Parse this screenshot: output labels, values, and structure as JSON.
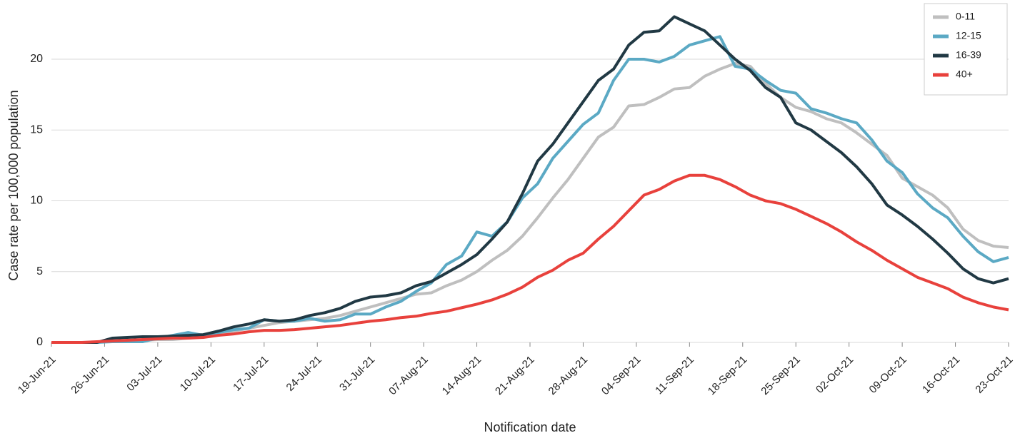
{
  "chart_data": {
    "type": "line",
    "x_label": "Notification date",
    "y_label": "Case rate per 100,000 population",
    "x": [
      "2021-06-19",
      "2021-06-21",
      "2021-06-23",
      "2021-06-25",
      "2021-06-27",
      "2021-06-29",
      "2021-07-01",
      "2021-07-03",
      "2021-07-05",
      "2021-07-07",
      "2021-07-09",
      "2021-07-11",
      "2021-07-13",
      "2021-07-15",
      "2021-07-17",
      "2021-07-19",
      "2021-07-21",
      "2021-07-23",
      "2021-07-25",
      "2021-07-27",
      "2021-07-29",
      "2021-07-31",
      "2021-08-02",
      "2021-08-04",
      "2021-08-06",
      "2021-08-08",
      "2021-08-10",
      "2021-08-12",
      "2021-08-14",
      "2021-08-16",
      "2021-08-18",
      "2021-08-20",
      "2021-08-22",
      "2021-08-24",
      "2021-08-26",
      "2021-08-28",
      "2021-08-30",
      "2021-09-01",
      "2021-09-03",
      "2021-09-05",
      "2021-09-07",
      "2021-09-09",
      "2021-09-11",
      "2021-09-13",
      "2021-09-15",
      "2021-09-17",
      "2021-09-19",
      "2021-09-21",
      "2021-09-23",
      "2021-09-25",
      "2021-09-27",
      "2021-09-29",
      "2021-10-01",
      "2021-10-03",
      "2021-10-05",
      "2021-10-07",
      "2021-10-09",
      "2021-10-11",
      "2021-10-13",
      "2021-10-15",
      "2021-10-17",
      "2021-10-19",
      "2021-10-21",
      "2021-10-23"
    ],
    "series": [
      {
        "name": "0-11",
        "color": "#bfbfbf",
        "values": [
          0,
          0,
          0,
          0,
          0.1,
          0.1,
          0.15,
          0.2,
          0.2,
          0.3,
          0.4,
          0.6,
          0.8,
          1.0,
          1.2,
          1.4,
          1.5,
          1.6,
          1.7,
          1.9,
          2.2,
          2.5,
          2.8,
          3.1,
          3.4,
          3.5,
          4.0,
          4.4,
          5.0,
          5.8,
          6.5,
          7.5,
          8.8,
          10.2,
          11.5,
          13.0,
          14.5,
          15.2,
          16.7,
          16.8,
          17.3,
          17.9,
          18.0,
          18.8,
          19.3,
          19.7,
          19.5,
          18.3,
          17.3,
          16.6,
          16.3,
          15.8,
          15.5,
          14.8,
          14.0,
          13.2,
          11.6,
          11.0,
          10.4,
          9.5,
          8.0,
          7.2,
          6.8,
          6.7
        ]
      },
      {
        "name": "12-15",
        "color": "#5ba9c4",
        "values": [
          0,
          0,
          0,
          0,
          0.05,
          0.05,
          0.05,
          0.3,
          0.5,
          0.7,
          0.5,
          0.7,
          0.9,
          1.0,
          1.6,
          1.5,
          1.5,
          1.7,
          1.5,
          1.6,
          2.0,
          2.0,
          2.5,
          2.9,
          3.6,
          4.2,
          5.5,
          6.1,
          7.8,
          7.5,
          8.5,
          10.2,
          11.2,
          13.0,
          14.2,
          15.4,
          16.2,
          18.5,
          20.0,
          20.0,
          19.8,
          20.2,
          21.0,
          21.3,
          21.6,
          19.5,
          19.3,
          18.5,
          17.8,
          17.6,
          16.5,
          16.2,
          15.8,
          15.5,
          14.3,
          12.8,
          12.0,
          10.5,
          9.5,
          8.8,
          7.5,
          6.4,
          5.7,
          6.0
        ]
      },
      {
        "name": "16-39",
        "color": "#213944",
        "values": [
          0,
          0,
          0,
          0,
          0.3,
          0.35,
          0.4,
          0.4,
          0.45,
          0.5,
          0.55,
          0.8,
          1.1,
          1.3,
          1.6,
          1.5,
          1.6,
          1.9,
          2.1,
          2.4,
          2.9,
          3.2,
          3.3,
          3.5,
          4.0,
          4.3,
          4.9,
          5.5,
          6.2,
          7.3,
          8.5,
          10.5,
          12.8,
          14.0,
          15.5,
          17.0,
          18.5,
          19.3,
          21.0,
          21.9,
          22.0,
          23.0,
          22.5,
          22.0,
          21.0,
          20.0,
          19.2,
          18.0,
          17.3,
          15.5,
          15.0,
          14.2,
          13.4,
          12.4,
          11.2,
          9.7,
          9.0,
          8.2,
          7.3,
          6.3,
          5.2,
          4.5,
          4.2,
          4.5
        ]
      },
      {
        "name": "40+",
        "color": "#e8413c",
        "values": [
          0,
          0,
          0,
          0.05,
          0.1,
          0.15,
          0.2,
          0.25,
          0.3,
          0.3,
          0.35,
          0.5,
          0.6,
          0.75,
          0.85,
          0.85,
          0.9,
          1.0,
          1.1,
          1.2,
          1.35,
          1.5,
          1.6,
          1.75,
          1.85,
          2.05,
          2.2,
          2.45,
          2.7,
          3.0,
          3.4,
          3.9,
          4.6,
          5.1,
          5.8,
          6.3,
          7.3,
          8.2,
          9.3,
          10.4,
          10.8,
          11.4,
          11.8,
          11.8,
          11.5,
          11.0,
          10.4,
          10.0,
          9.8,
          9.4,
          8.9,
          8.4,
          7.8,
          7.1,
          6.5,
          5.8,
          5.2,
          4.6,
          4.2,
          3.8,
          3.2,
          2.8,
          2.5,
          2.3
        ]
      }
    ],
    "xlim": [
      "2021-06-19",
      "2021-10-23"
    ],
    "xticks": [
      {
        "value": "2021-06-19",
        "label": "19-Jun-21"
      },
      {
        "value": "2021-06-26",
        "label": "26-Jun-21"
      },
      {
        "value": "2021-07-03",
        "label": "03-Jul-21"
      },
      {
        "value": "2021-07-10",
        "label": "10-Jul-21"
      },
      {
        "value": "2021-07-17",
        "label": "17-Jul-21"
      },
      {
        "value": "2021-07-24",
        "label": "24-Jul-21"
      },
      {
        "value": "2021-07-31",
        "label": "31-Jul-21"
      },
      {
        "value": "2021-08-07",
        "label": "07-Aug-21"
      },
      {
        "value": "2021-08-14",
        "label": "14-Aug-21"
      },
      {
        "value": "2021-08-21",
        "label": "21-Aug-21"
      },
      {
        "value": "2021-08-28",
        "label": "28-Aug-21"
      },
      {
        "value": "2021-09-04",
        "label": "04-Sep-21"
      },
      {
        "value": "2021-09-11",
        "label": "11-Sep-21"
      },
      {
        "value": "2021-09-18",
        "label": "18-Sep-21"
      },
      {
        "value": "2021-09-25",
        "label": "25-Sep-21"
      },
      {
        "value": "2021-10-02",
        "label": "02-Oct-21"
      },
      {
        "value": "2021-10-09",
        "label": "09-Oct-21"
      },
      {
        "value": "2021-10-16",
        "label": "16-Oct-21"
      },
      {
        "value": "2021-10-23",
        "label": "23-Oct-21"
      }
    ],
    "ylim": [
      0,
      24
    ],
    "yticks": [
      0,
      5,
      10,
      15,
      20
    ],
    "grid": true,
    "legend_position": "top-right"
  }
}
